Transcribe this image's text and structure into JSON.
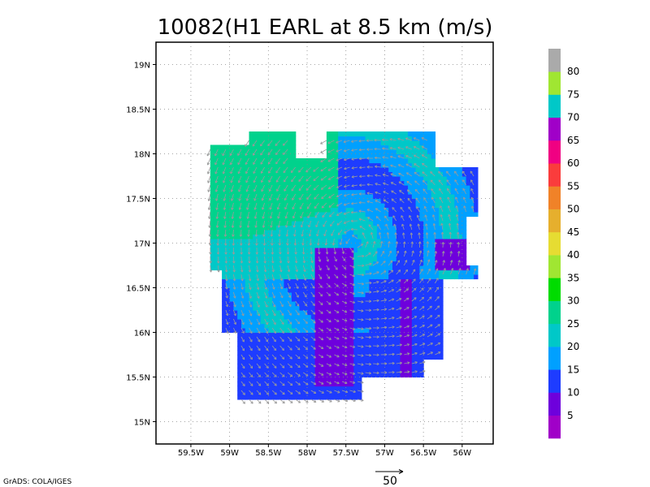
{
  "chart_data": {
    "type": "heatmap",
    "title": "10082(H1 EARL at 8.5 km (m/s)",
    "credit": "GrADS: COLA/IGES",
    "xlim": [
      -59.95,
      -55.6
    ],
    "ylim": [
      14.75,
      19.25
    ],
    "x_ticks": [
      {
        "value": -59.5,
        "label": "59.5W"
      },
      {
        "value": -59.0,
        "label": "59W"
      },
      {
        "value": -58.5,
        "label": "58.5W"
      },
      {
        "value": -58.0,
        "label": "58W"
      },
      {
        "value": -57.5,
        "label": "57.5W"
      },
      {
        "value": -57.0,
        "label": "57W"
      },
      {
        "value": -56.5,
        "label": "56.5W"
      },
      {
        "value": -56.0,
        "label": "56W"
      }
    ],
    "y_ticks": [
      {
        "value": 15.0,
        "label": "15N"
      },
      {
        "value": 15.5,
        "label": "15.5N"
      },
      {
        "value": 16.0,
        "label": "16N"
      },
      {
        "value": 16.5,
        "label": "16.5N"
      },
      {
        "value": 17.0,
        "label": "17N"
      },
      {
        "value": 17.5,
        "label": "17.5N"
      },
      {
        "value": 18.0,
        "label": "18N"
      },
      {
        "value": 18.5,
        "label": "18.5N"
      },
      {
        "value": 19.0,
        "label": "19N"
      }
    ],
    "grid": true,
    "colorbar": {
      "position": "right",
      "labels": [
        "5",
        "10",
        "15",
        "20",
        "25",
        "30",
        "35",
        "40",
        "45",
        "50",
        "55",
        "60",
        "65",
        "70",
        "75",
        "80"
      ],
      "colors": [
        "#a000c8",
        "#6e00dc",
        "#1e3cff",
        "#00a0ff",
        "#00c8c8",
        "#00d28c",
        "#00dc00",
        "#a0e632",
        "#e6dc32",
        "#e6af2d",
        "#f08228",
        "#fa3c3c",
        "#f00082",
        "#a000c8",
        "#00c8c8",
        "#a0e632",
        "#aaaaaa"
      ]
    },
    "vector_scale": {
      "label": "50",
      "value": 50
    },
    "features": {
      "low_speed_core_center": {
        "lon": -57.7,
        "lat": 16.3
      },
      "high_speed_band": "northwest quadrant, 25-30 m/s",
      "flow": "cyclonic rotation about center near 57.4W 17.0N"
    }
  }
}
